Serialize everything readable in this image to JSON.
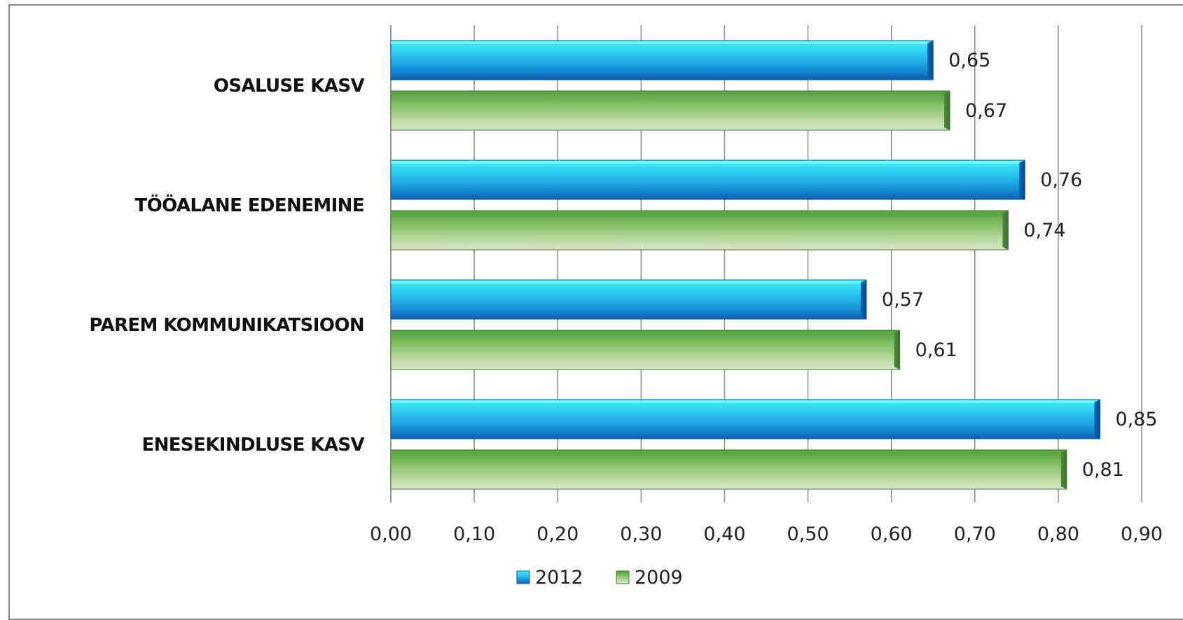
{
  "chart_data": {
    "type": "bar",
    "orientation": "horizontal",
    "categories": [
      "OSALUSE KASV",
      "TÖÖALANE EDENEMINE",
      "PAREM KOMMUNIKATSIOON",
      "ENESEKINDLUSE KASV"
    ],
    "series": [
      {
        "name": "2012",
        "values": [
          0.65,
          0.76,
          0.57,
          0.85
        ],
        "labels": [
          "0,65",
          "0,76",
          "0,57",
          "0,85"
        ],
        "color": "#1a9be0"
      },
      {
        "name": "2009",
        "values": [
          0.67,
          0.74,
          0.61,
          0.81
        ],
        "labels": [
          "0,67",
          "0,74",
          "0,61",
          "0,81"
        ],
        "color": "#6aaa4a"
      }
    ],
    "xlim": [
      0,
      0.9
    ],
    "ticks": [
      "0,00",
      "0,10",
      "0,20",
      "0,30",
      "0,40",
      "0,50",
      "0,60",
      "0,70",
      "0,80",
      "0,90"
    ],
    "tick_values": [
      0,
      0.1,
      0.2,
      0.3,
      0.4,
      0.5,
      0.6,
      0.7,
      0.8,
      0.9
    ],
    "grid": "vertical",
    "legend": "bottom",
    "title": "",
    "xlabel": "",
    "ylabel": ""
  }
}
